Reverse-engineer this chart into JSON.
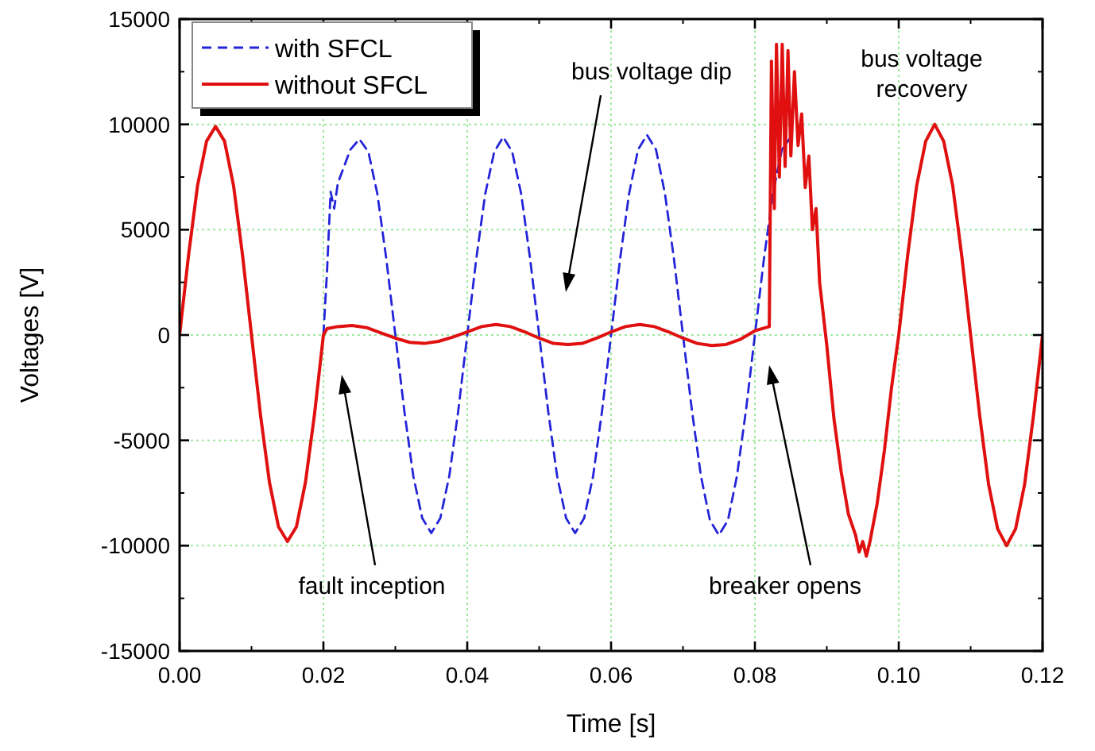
{
  "chart_data": {
    "type": "line",
    "xlabel": "Time [s]",
    "ylabel": "Voltages [V]",
    "xlim": [
      0,
      0.12
    ],
    "ylim": [
      -15000,
      15000
    ],
    "xticks": [
      {
        "value": 0,
        "label": "0.00"
      },
      {
        "value": 0.02,
        "label": "0.02"
      },
      {
        "value": 0.04,
        "label": "0.04"
      },
      {
        "value": 0.06,
        "label": "0.06"
      },
      {
        "value": 0.08,
        "label": "0.08"
      },
      {
        "value": 0.1,
        "label": "0.10"
      },
      {
        "value": 0.12,
        "label": "0.12"
      }
    ],
    "yticks": [
      -15000,
      -10000,
      -5000,
      0,
      5000,
      10000,
      15000
    ],
    "grid": true,
    "legend": "top left",
    "marker": "none",
    "series": [
      {
        "name": "with SFCL",
        "color": "#2424d8",
        "line_style": "dashed",
        "x": [
          0.02,
          0.0205,
          0.021,
          0.0215,
          0.022,
          0.02375,
          0.025,
          0.02625,
          0.0275,
          0.02875,
          0.03,
          0.03125,
          0.0325,
          0.03375,
          0.035,
          0.03625,
          0.0375,
          0.03875,
          0.04,
          0.04125,
          0.0425,
          0.04375,
          0.045,
          0.04625,
          0.0475,
          0.04875,
          0.05,
          0.05125,
          0.0525,
          0.05375,
          0.055,
          0.05625,
          0.0575,
          0.05875,
          0.06,
          0.06125,
          0.0625,
          0.06375,
          0.065,
          0.06625,
          0.0675,
          0.06875,
          0.07,
          0.07125,
          0.0725,
          0.07375,
          0.075,
          0.07625,
          0.0775,
          0.07875,
          0.08,
          0.08125,
          0.0825,
          0.08375,
          0.085
        ],
        "values": [
          0,
          3000,
          6800,
          6000,
          7200,
          8800,
          9300,
          8700,
          6700,
          3600,
          0,
          -3600,
          -6700,
          -8700,
          -9400,
          -8700,
          -6700,
          -3600,
          0,
          3600,
          6700,
          8700,
          9400,
          8700,
          6700,
          3600,
          0,
          -3600,
          -6700,
          -8700,
          -9400,
          -8700,
          -6700,
          -3600,
          0,
          3600,
          6700,
          8800,
          9500,
          8800,
          6700,
          3600,
          0,
          -3600,
          -6700,
          -8800,
          -9500,
          -8800,
          -6700,
          -3600,
          0,
          3600,
          6700,
          8800,
          9400
        ]
      },
      {
        "name": "without SFCL",
        "color": "#e01010",
        "line_style": "solid",
        "x": [
          0,
          0.00125,
          0.0025,
          0.00375,
          0.005,
          0.00625,
          0.0075,
          0.00875,
          0.01,
          0.01125,
          0.0125,
          0.01375,
          0.015,
          0.01625,
          0.0175,
          0.01875,
          0.02,
          0.0205,
          0.022,
          0.024,
          0.026,
          0.028,
          0.03,
          0.032,
          0.034,
          0.036,
          0.038,
          0.04,
          0.042,
          0.044,
          0.046,
          0.048,
          0.05,
          0.052,
          0.054,
          0.056,
          0.058,
          0.06,
          0.062,
          0.064,
          0.066,
          0.068,
          0.07,
          0.072,
          0.074,
          0.076,
          0.078,
          0.08,
          0.082,
          0.0823,
          0.0827,
          0.083,
          0.0834,
          0.0838,
          0.0842,
          0.0846,
          0.085,
          0.0855,
          0.086,
          0.0865,
          0.087,
          0.0875,
          0.088,
          0.0885,
          0.089,
          0.09,
          0.091,
          0.092,
          0.093,
          0.094,
          0.0945,
          0.095,
          0.0955,
          0.096,
          0.097,
          0.098,
          0.099,
          0.1,
          0.10125,
          0.1025,
          0.10375,
          0.105,
          0.10625,
          0.1075,
          0.10875,
          0.11,
          0.11125,
          0.1125,
          0.11375,
          0.115,
          0.11625,
          0.1175,
          0.11875,
          0.12
        ],
        "values": [
          0,
          3800,
          7100,
          9200,
          9900,
          9200,
          7100,
          3800,
          0,
          -3800,
          -7000,
          -9100,
          -9800,
          -9100,
          -7000,
          -3800,
          0,
          300,
          400,
          450,
          350,
          100,
          -150,
          -350,
          -400,
          -300,
          -100,
          150,
          400,
          500,
          400,
          150,
          -150,
          -400,
          -450,
          -400,
          -150,
          150,
          400,
          500,
          400,
          150,
          -150,
          -400,
          -500,
          -450,
          -200,
          200,
          400,
          13000,
          6000,
          13800,
          7500,
          13800,
          8000,
          13500,
          8500,
          12500,
          9000,
          10500,
          7000,
          8500,
          5000,
          6000,
          2500,
          -500,
          -4000,
          -6500,
          -8500,
          -9500,
          -10300,
          -9800,
          -10500,
          -9800,
          -8000,
          -5500,
          -2500,
          0,
          3800,
          7100,
          9200,
          10000,
          9200,
          7100,
          3800,
          0,
          -3800,
          -7100,
          -9200,
          -10000,
          -9200,
          -7100,
          -3800,
          0
        ]
      }
    ],
    "annotations": [
      "bus voltage dip",
      "fault inception",
      "breaker opens",
      "bus voltage recovery"
    ]
  }
}
